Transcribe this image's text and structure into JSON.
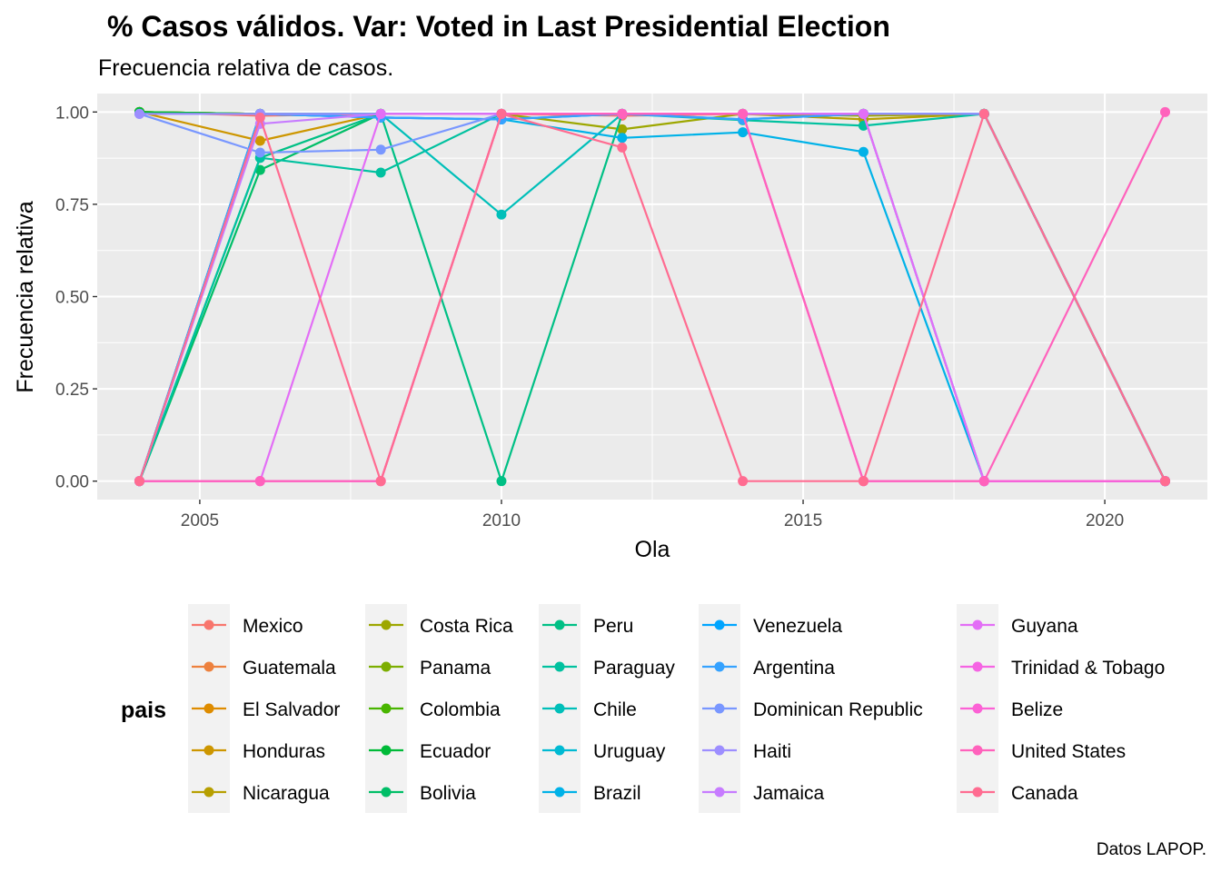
{
  "chart_data": {
    "type": "line",
    "title": "% Casos válidos. Var: Voted in Last Presidential Election",
    "subtitle": "Frecuencia relativa de casos.",
    "xlabel": "Ola",
    "ylabel": "Frecuencia relativa",
    "caption": "Datos LAPOP.",
    "legend_title": "pais",
    "legend_position": "bottom",
    "grid": true,
    "xlim": [
      2003.3,
      2021.7
    ],
    "ylim": [
      -0.05,
      1.05
    ],
    "x_ticks": [
      2005,
      2010,
      2015,
      2020
    ],
    "x_tick_labels": [
      "2005",
      "2010",
      "2015",
      "2020"
    ],
    "y_ticks": [
      0,
      0.25,
      0.5,
      0.75,
      1.0
    ],
    "y_tick_labels": [
      "0.00",
      "0.25",
      "0.50",
      "0.75",
      "1.00"
    ],
    "x": [
      2004,
      2006,
      2008,
      2010,
      2012,
      2014,
      2016,
      2018,
      2021
    ],
    "series": [
      {
        "name": "Mexico",
        "color": "#F8766D",
        "values": [
          1.0,
          0.99,
          0.995,
          0.995,
          0.99,
          0.995,
          0.995,
          0.995,
          0.0
        ]
      },
      {
        "name": "Guatemala",
        "color": "#ED813E",
        "values": [
          1.0,
          0.995,
          0.995,
          0.995,
          0.995,
          0.995,
          0.995,
          0.995,
          0.0
        ]
      },
      {
        "name": "El Salvador",
        "color": "#DE8C00",
        "values": [
          1.0,
          0.995,
          0.995,
          0.995,
          0.995,
          0.995,
          0.995,
          0.995,
          0.0
        ]
      },
      {
        "name": "Honduras",
        "color": "#CD9600",
        "values": [
          1.0,
          0.922,
          0.995,
          0.995,
          0.995,
          0.995,
          0.995,
          0.995,
          0.0
        ]
      },
      {
        "name": "Nicaragua",
        "color": "#B79F00",
        "values": [
          1.0,
          0.995,
          0.995,
          0.995,
          0.995,
          0.995,
          0.98,
          0.995,
          0.0
        ]
      },
      {
        "name": "Costa Rica",
        "color": "#9DA700",
        "values": [
          1.0,
          0.995,
          0.995,
          0.995,
          0.953,
          0.995,
          0.99,
          0.995,
          0.0
        ]
      },
      {
        "name": "Panama",
        "color": "#7CAE00",
        "values": [
          1.0,
          0.995,
          0.995,
          0.995,
          0.995,
          0.995,
          0.995,
          0.995,
          0.0
        ]
      },
      {
        "name": "Colombia",
        "color": "#49B500",
        "values": [
          1.0,
          0.995,
          0.995,
          0.995,
          0.995,
          0.995,
          0.995,
          0.995,
          0.0
        ]
      },
      {
        "name": "Ecuador",
        "color": "#00BA38",
        "values": [
          1.0,
          0.995,
          0.995,
          0.995,
          0.995,
          0.995,
          0.995,
          0.995,
          0.0
        ]
      },
      {
        "name": "Bolivia",
        "color": "#00BE67",
        "values": [
          0.0,
          0.843,
          0.995,
          0.995,
          0.995,
          0.995,
          0.995,
          0.995,
          0.0
        ]
      },
      {
        "name": "Peru",
        "color": "#00C085",
        "values": [
          0.0,
          0.876,
          0.995,
          0.0,
          0.995,
          0.995,
          0.995,
          0.995,
          0.0
        ]
      },
      {
        "name": "Paraguay",
        "color": "#00C19F",
        "values": [
          0.0,
          0.876,
          0.836,
          0.995,
          0.995,
          0.978,
          0.963,
          0.995,
          0.0
        ]
      },
      {
        "name": "Chile",
        "color": "#00BFB9",
        "values": [
          0.0,
          0.995,
          0.995,
          0.722,
          0.995,
          0.995,
          0.995,
          0.995,
          0.0
        ]
      },
      {
        "name": "Uruguay",
        "color": "#00BAD3",
        "values": [
          0.0,
          0.995,
          0.995,
          0.995,
          0.995,
          0.995,
          0.995,
          0.995,
          0.0
        ]
      },
      {
        "name": "Brazil",
        "color": "#00B2E8",
        "values": [
          0.0,
          0.995,
          0.985,
          0.98,
          0.93,
          0.945,
          0.892,
          0.0,
          0.0
        ]
      },
      {
        "name": "Venezuela",
        "color": "#00A5FF",
        "values": [
          0.0,
          0.995,
          0.985,
          0.98,
          0.995,
          0.98,
          0.995,
          0.0,
          0.0
        ]
      },
      {
        "name": "Argentina",
        "color": "#35A2FF",
        "values": [
          0.0,
          0.995,
          0.985,
          0.98,
          0.995,
          0.98,
          0.995,
          0.0,
          0.0
        ]
      },
      {
        "name": "Dominican Republic",
        "color": "#7997FF",
        "values": [
          0.995,
          0.89,
          0.898,
          0.995,
          0.995,
          0.995,
          0.995,
          0.995,
          0.0
        ]
      },
      {
        "name": "Haiti",
        "color": "#9D8EFF",
        "values": [
          0.995,
          0.995,
          0.995,
          0.995,
          0.995,
          0.995,
          0.995,
          0.995,
          0.0
        ]
      },
      {
        "name": "Jamaica",
        "color": "#C77CFF",
        "values": [
          0.0,
          0.968,
          0.995,
          0.995,
          0.995,
          0.995,
          0.995,
          0.0,
          0.0
        ]
      },
      {
        "name": "Guyana",
        "color": "#E36EF6",
        "values": [
          0.0,
          0.0,
          0.995,
          0.995,
          0.995,
          0.995,
          0.995,
          0.0,
          0.0
        ]
      },
      {
        "name": "Trinidad & Tobago",
        "color": "#F564E3",
        "values": [
          0.0,
          0.0,
          0.0,
          0.995,
          0.995,
          0.995,
          0.0,
          0.0,
          0.0
        ]
      },
      {
        "name": "Belize",
        "color": "#FC61D5",
        "values": [
          0.0,
          0.0,
          0.0,
          0.995,
          0.995,
          0.995,
          0.0,
          0.0,
          0.0
        ]
      },
      {
        "name": "United States",
        "color": "#FF62BC",
        "values": [
          0.0,
          0.0,
          0.0,
          0.995,
          0.995,
          0.995,
          0.0,
          0.0,
          1.0
        ]
      },
      {
        "name": "Canada",
        "color": "#FF6C91",
        "values": [
          0.0,
          0.985,
          0.0,
          0.995,
          0.904,
          0.0,
          0.0,
          0.995,
          0.0
        ]
      }
    ]
  }
}
